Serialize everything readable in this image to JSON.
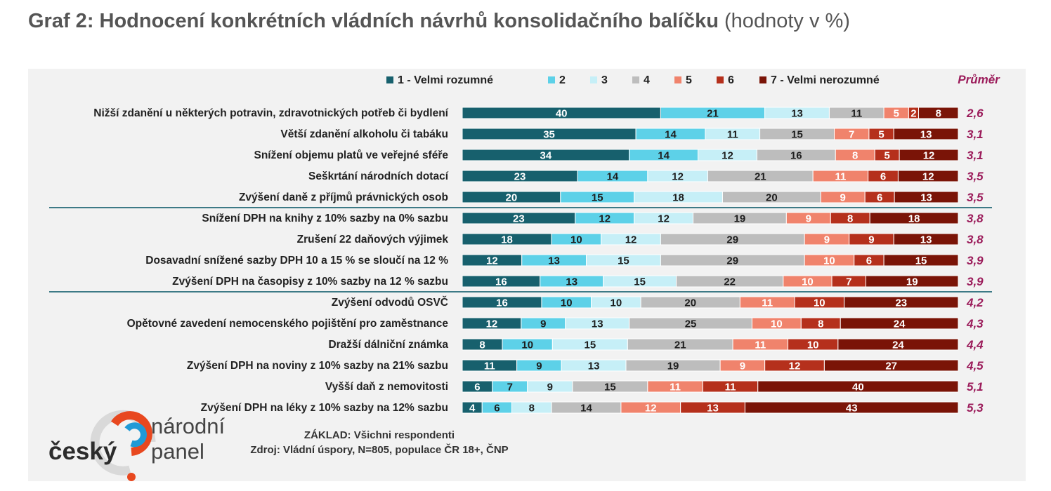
{
  "page": {
    "title_main": "Graf 2: Hodnocení konkrétních vládních návrhů konsolidačního balíčku",
    "title_suffix": " (hodnoty v %)"
  },
  "chart_data": {
    "type": "bar",
    "orientation": "horizontal",
    "stacked": true,
    "title": "",
    "legend": {
      "placement": "top",
      "average_label": "Průměr"
    },
    "series": [
      {
        "name": "1 - Velmi rozumné",
        "color": "#17606d"
      },
      {
        "name": "2",
        "color": "#5dd1e8"
      },
      {
        "name": "3",
        "color": "#c6eff7"
      },
      {
        "name": "4",
        "color": "#bdbdbd"
      },
      {
        "name": "5",
        "color": "#f0836c"
      },
      {
        "name": "6",
        "color": "#b5301c"
      },
      {
        "name": "7 - Velmi nerozumné",
        "color": "#7a1407"
      }
    ],
    "categories": [
      "Nižší zdanění u některých potravin, zdravotnických potřeb či bydlení",
      "Větší zdanění alkoholu či tabáku",
      "Snížení objemu platů ve veřejné sféře",
      "Seškrtání národních dotací",
      "Zvýšení daně z příjmů právnických osob",
      "Snížení DPH na knihy z 10% sazby na 0% sazbu",
      "Zrušení 22 daňových výjimek",
      "Dosavadní snížené sazby DPH 10 a 15 % se sloučí na 12 %",
      "Zvýšení DPH na časopisy z 10% sazby na 12 % sazbu",
      "Zvýšení odvodů OSVČ",
      "Opětovné zavedení nemocenského pojištění pro zaměstnance",
      "Dražší dálniční známka",
      "Zvýšení DPH na noviny z 10% sazby na 21% sazbu",
      "Vyšší daň z nemovitosti",
      "Zvýšení DPH na léky z 10% sazby na 12% sazbu"
    ],
    "values": [
      [
        40,
        21,
        13,
        11,
        5,
        2,
        8
      ],
      [
        35,
        14,
        11,
        15,
        7,
        5,
        13
      ],
      [
        34,
        14,
        12,
        16,
        8,
        5,
        12
      ],
      [
        23,
        14,
        12,
        21,
        11,
        6,
        12
      ],
      [
        20,
        15,
        18,
        20,
        9,
        6,
        13
      ],
      [
        23,
        12,
        12,
        19,
        9,
        8,
        18
      ],
      [
        18,
        10,
        12,
        29,
        9,
        9,
        13
      ],
      [
        12,
        13,
        15,
        29,
        10,
        6,
        15
      ],
      [
        16,
        13,
        15,
        22,
        10,
        7,
        19
      ],
      [
        16,
        10,
        10,
        20,
        11,
        10,
        23
      ],
      [
        12,
        9,
        13,
        25,
        10,
        8,
        24
      ],
      [
        8,
        10,
        15,
        21,
        11,
        10,
        24
      ],
      [
        11,
        9,
        13,
        19,
        9,
        12,
        27
      ],
      [
        6,
        7,
        9,
        15,
        11,
        11,
        40
      ],
      [
        4,
        6,
        8,
        14,
        12,
        13,
        43
      ]
    ],
    "averages": [
      "2,6",
      "3,1",
      "3,1",
      "3,5",
      "3,5",
      "3,8",
      "3,8",
      "3,9",
      "3,9",
      "4,2",
      "4,3",
      "4,4",
      "4,5",
      "5,1",
      "5,3"
    ],
    "group_separators_after_row": [
      4,
      8
    ],
    "colors": {
      "label_text": "#222222",
      "average_text": "#9b1b5a",
      "separator": "#3d7a86",
      "panel_bg": "#f2f2f2"
    }
  },
  "footer": {
    "base": "ZÁKLAD: Všichni respondenti",
    "source": "Zdroj: Vládní úspory, N=805, populace ČR 18+, ČNP"
  },
  "logo": {
    "word_main": "český",
    "word_line1": "národní",
    "word_line2": "panel"
  }
}
